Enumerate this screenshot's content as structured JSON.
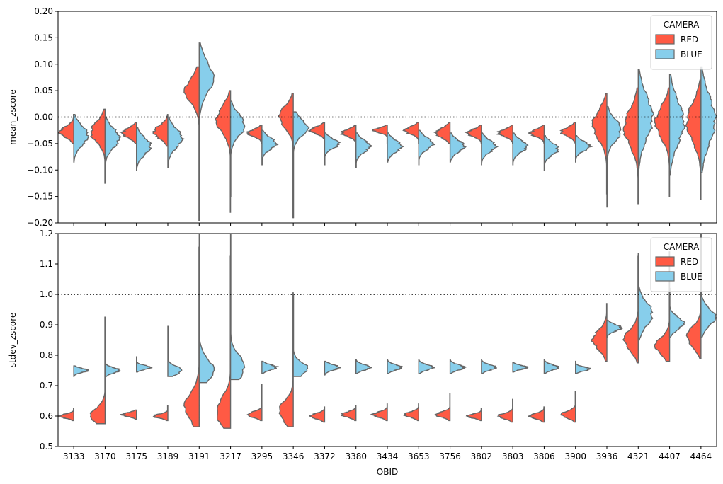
{
  "chart_data": [
    {
      "type": "violin",
      "subtype": "split",
      "xlabel": "",
      "ylabel": "mean_zscore",
      "ylim": [
        -0.2,
        0.2
      ],
      "yticks": [
        "0.20",
        "0.15",
        "0.10",
        "0.05",
        "0.00",
        "−0.05",
        "−0.10",
        "−0.15",
        "−0.20"
      ],
      "reference_line": 0.0,
      "legend": {
        "title": "CAMERA",
        "placement": "upper right",
        "entries": [
          "RED",
          "BLUE"
        ]
      },
      "categories": [
        "3133",
        "3170",
        "3175",
        "3189",
        "3191",
        "3217",
        "3295",
        "3346",
        "3372",
        "3380",
        "3434",
        "3653",
        "3756",
        "3802",
        "3803",
        "3806",
        "3900",
        "3936",
        "4321",
        "4407",
        "4464"
      ],
      "series": [
        {
          "name": "RED",
          "color": "#ff5a44",
          "center": [
            -0.028,
            -0.028,
            -0.03,
            -0.028,
            0.05,
            -0.005,
            -0.03,
            0.0,
            -0.025,
            -0.03,
            -0.025,
            -0.025,
            -0.03,
            -0.03,
            -0.03,
            -0.03,
            -0.028,
            -0.015,
            -0.02,
            -0.01,
            -0.01
          ],
          "min": [
            -0.05,
            -0.125,
            -0.05,
            -0.055,
            -0.195,
            -0.18,
            -0.05,
            -0.19,
            -0.05,
            -0.05,
            -0.05,
            -0.05,
            -0.05,
            -0.05,
            -0.05,
            -0.05,
            -0.05,
            -0.145,
            -0.165,
            -0.15,
            -0.155
          ],
          "max": [
            0.005,
            0.015,
            -0.01,
            0.005,
            0.095,
            0.05,
            -0.015,
            0.045,
            -0.01,
            -0.015,
            -0.015,
            -0.01,
            -0.01,
            -0.015,
            -0.015,
            -0.015,
            -0.01,
            0.045,
            0.055,
            0.055,
            0.07
          ]
        },
        {
          "name": "BLUE",
          "color": "#87ceeb",
          "center": [
            -0.035,
            -0.04,
            -0.055,
            -0.04,
            0.075,
            -0.015,
            -0.05,
            -0.02,
            -0.05,
            -0.055,
            -0.055,
            -0.05,
            -0.055,
            -0.055,
            -0.055,
            -0.06,
            -0.055,
            -0.025,
            0.0,
            -0.01,
            -0.005
          ],
          "min": [
            -0.085,
            -0.09,
            -0.1,
            -0.095,
            -0.195,
            -0.15,
            -0.09,
            -0.19,
            -0.09,
            -0.095,
            -0.085,
            -0.09,
            -0.085,
            -0.09,
            -0.09,
            -0.1,
            -0.085,
            -0.17,
            -0.1,
            -0.11,
            -0.105
          ],
          "max": [
            0.005,
            0.0,
            -0.02,
            0.0,
            0.14,
            0.03,
            -0.025,
            0.01,
            -0.03,
            -0.03,
            -0.03,
            -0.025,
            -0.03,
            -0.03,
            -0.03,
            -0.035,
            -0.035,
            0.02,
            0.09,
            0.08,
            0.095
          ]
        }
      ]
    },
    {
      "type": "violin",
      "subtype": "split",
      "xlabel": "OBID",
      "ylabel": "stdev_zscore",
      "ylim": [
        0.5,
        1.2
      ],
      "yticks": [
        "1.2",
        "1.1",
        "1.0",
        "0.9",
        "0.8",
        "0.7",
        "0.6",
        "0.5"
      ],
      "reference_line": 1.0,
      "legend": {
        "title": "CAMERA",
        "placement": "upper right",
        "entries": [
          "RED",
          "BLUE"
        ]
      },
      "categories": [
        "3133",
        "3170",
        "3175",
        "3189",
        "3191",
        "3217",
        "3295",
        "3346",
        "3372",
        "3380",
        "3434",
        "3653",
        "3756",
        "3802",
        "3803",
        "3806",
        "3900",
        "3936",
        "4321",
        "4407",
        "4464"
      ],
      "series": [
        {
          "name": "RED",
          "color": "#ff5a44",
          "center": [
            0.6,
            0.6,
            0.605,
            0.6,
            0.63,
            0.615,
            0.605,
            0.615,
            0.6,
            0.605,
            0.605,
            0.605,
            0.605,
            0.6,
            0.6,
            0.6,
            0.605,
            0.85,
            0.85,
            0.83,
            0.86
          ],
          "min": [
            0.585,
            0.575,
            0.59,
            0.585,
            0.565,
            0.56,
            0.585,
            0.565,
            0.58,
            0.585,
            0.585,
            0.585,
            0.585,
            0.585,
            0.58,
            0.58,
            0.58,
            0.78,
            0.775,
            0.78,
            0.79
          ],
          "max": [
            0.625,
            0.925,
            0.62,
            0.635,
            1.155,
            1.125,
            0.705,
            1.005,
            0.63,
            0.635,
            0.64,
            0.64,
            0.675,
            0.625,
            0.655,
            0.63,
            0.68,
            0.97,
            1.125,
            1.14,
            1.2
          ]
        },
        {
          "name": "BLUE",
          "color": "#87ceeb",
          "center": [
            0.75,
            0.75,
            0.76,
            0.75,
            0.75,
            0.76,
            0.76,
            0.755,
            0.76,
            0.76,
            0.76,
            0.76,
            0.76,
            0.76,
            0.76,
            0.76,
            0.755,
            0.89,
            0.935,
            0.905,
            0.925
          ],
          "min": [
            0.73,
            0.73,
            0.745,
            0.73,
            0.71,
            0.72,
            0.74,
            0.73,
            0.735,
            0.74,
            0.74,
            0.74,
            0.74,
            0.74,
            0.745,
            0.74,
            0.74,
            0.86,
            0.85,
            0.86,
            0.86
          ],
          "max": [
            0.765,
            0.775,
            0.795,
            0.895,
            1.2,
            1.2,
            0.78,
            1.0,
            0.78,
            0.785,
            0.785,
            0.785,
            0.785,
            0.785,
            0.775,
            0.785,
            0.78,
            0.915,
            1.135,
            1.02,
            1.2
          ]
        }
      ]
    }
  ]
}
